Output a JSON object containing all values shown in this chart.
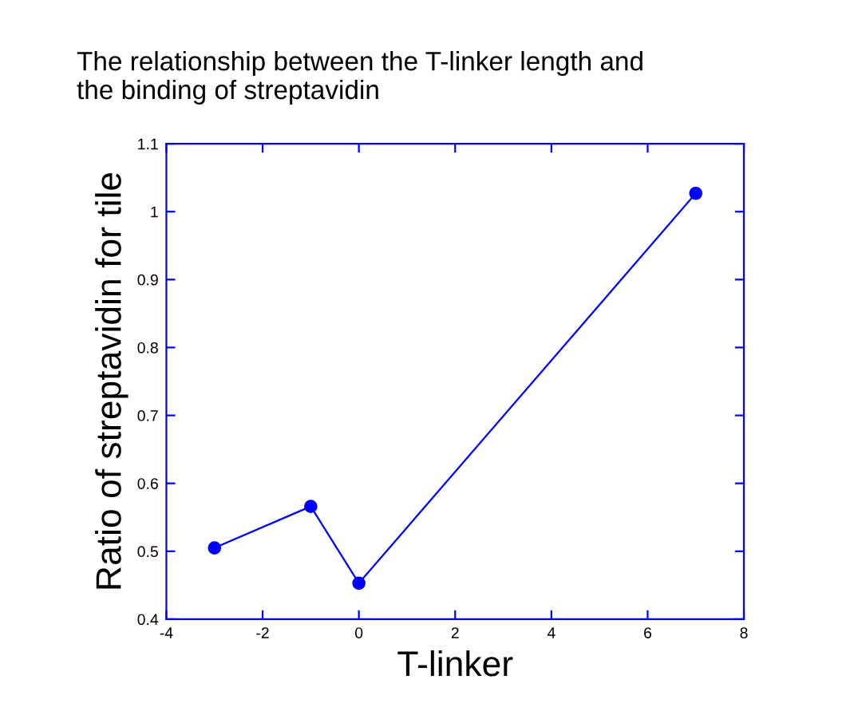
{
  "chart_data": {
    "type": "line",
    "title": "The relationship between the T-linker length and\nthe binding of streptavidin",
    "xlabel": "T-linker",
    "ylabel": "Ratio of streptavidin for tile",
    "x": [
      -3,
      -1,
      0,
      7
    ],
    "series": [
      {
        "color": "#0000ff",
        "values": [
          0.505,
          0.566,
          0.453,
          1.027
        ]
      }
    ],
    "xlim": [
      -4,
      8
    ],
    "xticks": [
      -4,
      -2,
      0,
      2,
      4,
      6,
      8
    ],
    "ylim": [
      0.4,
      1.1
    ],
    "yticks": [
      0.4,
      0.5,
      0.6,
      0.7,
      0.8,
      0.9,
      1,
      1.1
    ],
    "grid": false,
    "legend": false,
    "marker": "circle",
    "line_style": "solid"
  }
}
